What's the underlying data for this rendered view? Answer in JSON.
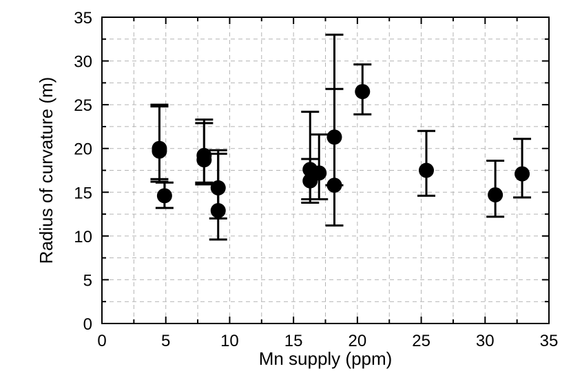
{
  "chart_data": {
    "type": "scatter",
    "xlabel": "Mn supply (ppm)",
    "ylabel": "Radius of curvature (m)",
    "xlim": [
      0,
      35
    ],
    "ylim": [
      0,
      35
    ],
    "xticks": [
      "0",
      "5",
      "10",
      "15",
      "20",
      "25",
      "30",
      "35"
    ],
    "yticks": [
      "0",
      "5",
      "10",
      "15",
      "20",
      "25",
      "30",
      "35"
    ],
    "grid": true,
    "series": [
      {
        "points": [
          {
            "x": 4.5,
            "y": 20.0,
            "ylow": 16.5,
            "yhigh": 24.8
          },
          {
            "x": 4.5,
            "y": 19.7,
            "ylow": 16.2,
            "yhigh": 25.0
          },
          {
            "x": 4.9,
            "y": 14.6,
            "ylow": 13.2,
            "yhigh": 16.1
          },
          {
            "x": 8.0,
            "y": 19.2,
            "ylow": 16.1,
            "yhigh": 23.3
          },
          {
            "x": 8.0,
            "y": 18.7,
            "ylow": 15.9,
            "yhigh": 22.9
          },
          {
            "x": 9.1,
            "y": 15.5,
            "ylow": 12.0,
            "yhigh": 19.8
          },
          {
            "x": 9.1,
            "y": 12.9,
            "ylow": 9.6,
            "yhigh": 19.4
          },
          {
            "x": 16.3,
            "y": 17.6,
            "ylow": 14.2,
            "yhigh": 24.2
          },
          {
            "x": 16.3,
            "y": 16.3,
            "ylow": 13.8,
            "yhigh": 18.8
          },
          {
            "x": 17.0,
            "y": 17.2,
            "ylow": 14.2,
            "yhigh": 21.6
          },
          {
            "x": 18.2,
            "y": 21.3,
            "ylow": 15.8,
            "yhigh": 26.8
          },
          {
            "x": 18.2,
            "y": 15.8,
            "ylow": 11.2,
            "yhigh": 33.0
          },
          {
            "x": 20.4,
            "y": 26.5,
            "ylow": 23.9,
            "yhigh": 29.6
          },
          {
            "x": 25.4,
            "y": 17.5,
            "ylow": 14.6,
            "yhigh": 22.0
          },
          {
            "x": 30.8,
            "y": 14.7,
            "ylow": 12.2,
            "yhigh": 18.6
          },
          {
            "x": 32.9,
            "y": 17.1,
            "ylow": 14.4,
            "yhigh": 21.1
          }
        ]
      }
    ]
  }
}
